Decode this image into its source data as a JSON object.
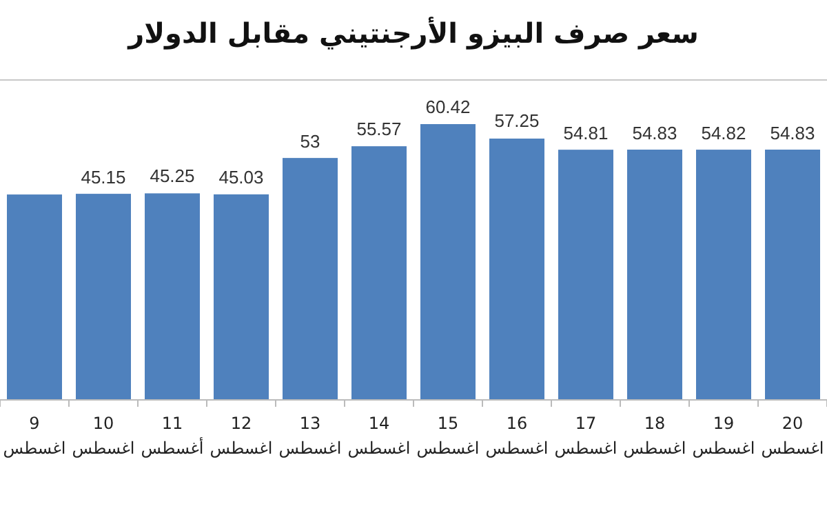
{
  "chart_data": {
    "type": "bar",
    "title": "سعر صرف البيزو الأرجنتيني مقابل الدولار",
    "categories": [
      "9 اغسطس",
      "10 اغسطس",
      "11 أغسطس",
      "12 اغسطس",
      "13 اغسطس",
      "14 اغسطس",
      "15 اغسطس",
      "16 اغسطس",
      "17 اغسطس",
      "18 اغسطس",
      "19 اغسطس",
      "20 اغسطس"
    ],
    "values": [
      45,
      45.15,
      45.25,
      45.03,
      53,
      55.57,
      60.42,
      57.25,
      54.81,
      54.83,
      54.82,
      54.83
    ],
    "value_labels": [
      null,
      "45.15",
      "45.25",
      "45.03",
      "53",
      "55.57",
      "60.42",
      "57.25",
      "54.81",
      "54.83",
      "54.82",
      "54.83"
    ],
    "color": "#4f81bd"
  }
}
